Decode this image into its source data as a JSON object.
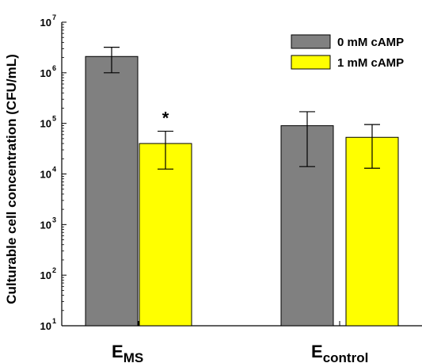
{
  "chart_data": {
    "type": "bar",
    "ylabel": "Culturable cell concentration (CFU/mL)",
    "y_scale": "log",
    "ylim": [
      10,
      10000000
    ],
    "y_ticks": [
      {
        "value": 10,
        "base": "10",
        "exp": "1"
      },
      {
        "value": 100,
        "base": "10",
        "exp": "2"
      },
      {
        "value": 1000,
        "base": "10",
        "exp": "3"
      },
      {
        "value": 10000,
        "base": "10",
        "exp": "4"
      },
      {
        "value": 100000,
        "base": "10",
        "exp": "5"
      },
      {
        "value": 1000000,
        "base": "10",
        "exp": "6"
      },
      {
        "value": 10000000,
        "base": "10",
        "exp": "7"
      }
    ],
    "categories": [
      {
        "main": "E",
        "sub": "MS"
      },
      {
        "main": "E",
        "sub": "control"
      }
    ],
    "series": [
      {
        "name": "0 mM cAMP",
        "color": "#808080",
        "values": [
          2100000,
          90000
        ],
        "err_low": [
          1000000,
          14000
        ],
        "err_high": [
          3200000,
          170000
        ]
      },
      {
        "name": "1 mM cAMP",
        "color": "#ffff00",
        "values": [
          40000,
          53000
        ],
        "err_low": [
          12500,
          13000
        ],
        "err_high": [
          70000,
          95000
        ]
      }
    ],
    "annotations": [
      {
        "text": "*",
        "category": 0,
        "series": 1
      }
    ],
    "legend_position": "top-right",
    "grid": false
  }
}
